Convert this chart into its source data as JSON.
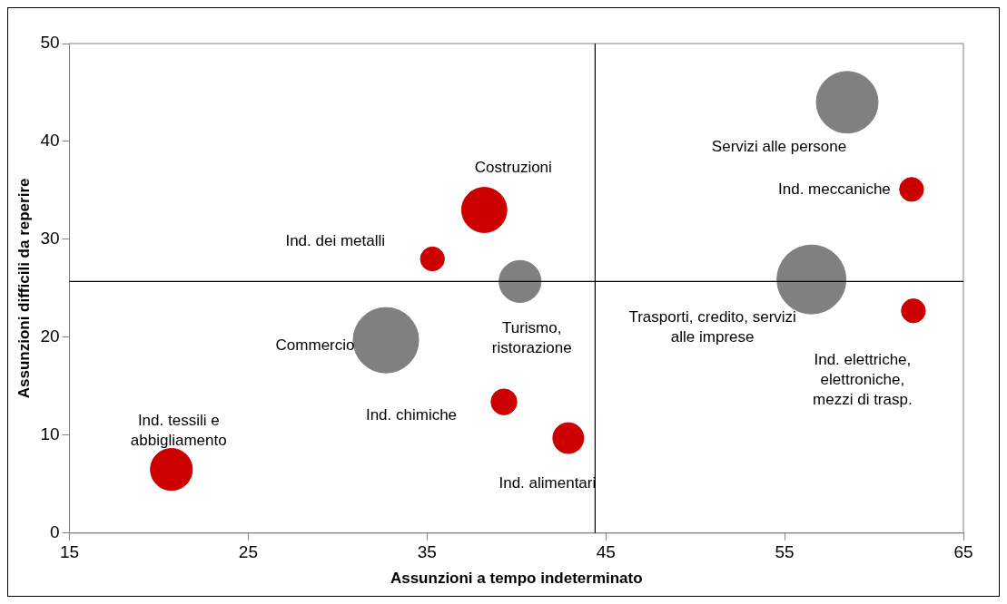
{
  "chart_data": {
    "type": "bubble",
    "xlabel": "Assunzioni a tempo indeterminato",
    "ylabel": "Assunzioni difficili da reperire",
    "xlim": [
      15,
      65
    ],
    "xticks": [
      15,
      25,
      35,
      45,
      55,
      65
    ],
    "ylim": [
      0,
      50
    ],
    "yticks": [
      0,
      10,
      20,
      30,
      40,
      50
    ],
    "grid": false,
    "legend": false,
    "ref_lines": [
      {
        "axis": "x",
        "value": 44.4,
        "color": "#000000"
      },
      {
        "axis": "y",
        "value": 25.7,
        "color": "#000000"
      }
    ],
    "series": [
      {
        "name": "Servizi alle persone",
        "color": "#808080",
        "x": [
          58.5
        ],
        "values": [
          44
        ],
        "sizes": [
          0.8
        ]
      },
      {
        "name": "Ind. meccaniche",
        "color": "#cc0000",
        "x": [
          62.1
        ],
        "values": [
          35.1
        ],
        "sizes": [
          0.12
        ]
      },
      {
        "name": "Trasporti, credito, servizi alle imprese",
        "color": "#808080",
        "x": [
          56.5
        ],
        "values": [
          25.9
        ],
        "sizes": [
          1
        ]
      },
      {
        "name": "Ind. elettriche, elettroniche, mezzi di trasp.",
        "color": "#cc0000",
        "x": [
          62.2
        ],
        "values": [
          22.7
        ],
        "sizes": [
          0.12
        ]
      },
      {
        "name": "Costruzioni",
        "color": "#cc0000",
        "x": [
          38.2
        ],
        "values": [
          33
        ],
        "sizes": [
          0.43
        ]
      },
      {
        "name": "Ind. dei metalli",
        "color": "#cc0000",
        "x": [
          35.3
        ],
        "values": [
          28
        ],
        "sizes": [
          0.12
        ]
      },
      {
        "name": "Turismo, ristorazione",
        "color": "#808080",
        "x": [
          40.2
        ],
        "values": [
          25.7
        ],
        "sizes": [
          0.37
        ]
      },
      {
        "name": "Commercio",
        "color": "#808080",
        "x": [
          32.7
        ],
        "values": [
          19.7
        ],
        "sizes": [
          0.9
        ]
      },
      {
        "name": "Ind. chimiche",
        "color": "#cc0000",
        "x": [
          39.3
        ],
        "values": [
          13.4
        ],
        "sizes": [
          0.14
        ]
      },
      {
        "name": "Ind. alimentari",
        "color": "#cc0000",
        "x": [
          42.9
        ],
        "values": [
          9.7
        ],
        "sizes": [
          0.2
        ]
      },
      {
        "name": "Ind. tessili e abbigliamento",
        "color": "#cc0000",
        "x": [
          20.7
        ],
        "values": [
          6.5
        ],
        "sizes": [
          0.37
        ]
      }
    ]
  }
}
